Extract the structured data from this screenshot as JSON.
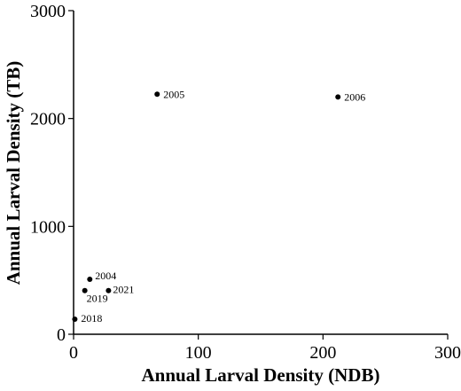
{
  "chart_data": {
    "type": "scatter",
    "title": "",
    "xlabel": "Annual Larval Density (NDB)",
    "ylabel": "Annual Larval Density (TB)",
    "xlim": [
      0,
      300
    ],
    "ylim": [
      0,
      3000
    ],
    "x_ticks": [
      0,
      100,
      200,
      300
    ],
    "y_ticks": [
      0,
      1000,
      2000,
      3000
    ],
    "grid": false,
    "legend": "none",
    "points": [
      {
        "label": "2005",
        "x": 67,
        "y": 2225
      },
      {
        "label": "2006",
        "x": 212,
        "y": 2200
      },
      {
        "label": "2004",
        "x": 13,
        "y": 510
      },
      {
        "label": "2019",
        "x": 9,
        "y": 405
      },
      {
        "label": "2021",
        "x": 28,
        "y": 405
      },
      {
        "label": "2018",
        "x": 1,
        "y": 140
      }
    ],
    "marker_color": "#000000"
  }
}
